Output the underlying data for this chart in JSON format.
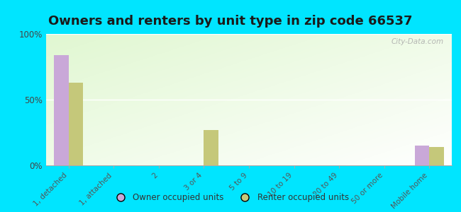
{
  "title": "Owners and renters by unit type in zip code 66537",
  "categories": [
    "1, detached",
    "1, attached",
    "2",
    "3 or 4",
    "5 to 9",
    "10 to 19",
    "20 to 49",
    "50 or more",
    "Mobile home"
  ],
  "owner_values": [
    84,
    0,
    0,
    0,
    0,
    0,
    0,
    0,
    15
  ],
  "renter_values": [
    63,
    0,
    0,
    27,
    0,
    0,
    0,
    0,
    14
  ],
  "owner_color": "#c9a8d8",
  "renter_color": "#c5c87a",
  "background_color": "#00e5ff",
  "title_fontsize": 13,
  "ylabel_ticks": [
    "0%",
    "50%",
    "100%"
  ],
  "ytick_values": [
    0,
    50,
    100
  ],
  "ylim": [
    0,
    100
  ],
  "bar_width": 0.32,
  "watermark": "City-Data.com"
}
